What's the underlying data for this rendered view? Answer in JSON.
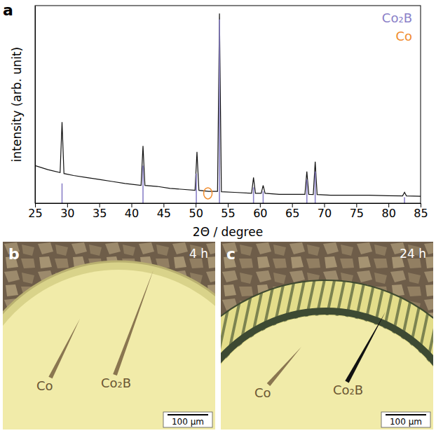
{
  "chart_data": {
    "type": "line",
    "panel": "a",
    "x_label": "2Θ / degree",
    "y_label": "intensity (arb. unit)",
    "xlim": [
      25,
      85
    ],
    "xticks": [
      25,
      30,
      35,
      40,
      45,
      50,
      55,
      60,
      65,
      70,
      75,
      80,
      85
    ],
    "ylim": [
      0,
      100
    ],
    "tick_labels": "x",
    "legend": "top-right",
    "series": [
      {
        "type": "line",
        "color": "#111111",
        "x": [
          25,
          27,
          28.9,
          29.2,
          29.5,
          31,
          33,
          35,
          37,
          39,
          41.5,
          41.8,
          42.1,
          44,
          46,
          48,
          49.9,
          50.2,
          50.5,
          52,
          53.4,
          53.7,
          54.0,
          56,
          58.7,
          59.0,
          59.3,
          60.2,
          60.5,
          60.8,
          63,
          65,
          67.0,
          67.3,
          67.6,
          68.3,
          68.6,
          68.9,
          71,
          74,
          77,
          80,
          82.2,
          82.5,
          82.8,
          85
        ],
        "values": [
          19,
          17,
          15.5,
          41,
          15,
          14,
          13,
          12,
          11,
          10,
          9,
          29,
          9,
          8.5,
          7.5,
          7,
          6.5,
          26,
          6.5,
          6,
          6,
          96,
          5.8,
          5.5,
          5,
          13,
          5,
          5,
          9,
          5,
          4.5,
          4.5,
          4.5,
          16,
          4.5,
          4.4,
          21,
          4.4,
          4,
          4,
          4,
          3.8,
          3.7,
          5.5,
          3.7,
          3.5
        ]
      },
      {
        "name": "Co₂B",
        "type": "bar",
        "color": "#8a80c8",
        "x": [
          29.2,
          41.8,
          50.1,
          53.7,
          59.0,
          60.5,
          67.3,
          68.6,
          82.5
        ],
        "values": [
          10,
          19,
          15,
          93,
          8,
          6,
          12,
          16,
          3
        ]
      },
      {
        "name": "Co",
        "type": "scatter",
        "marker": "circle",
        "color": "#f08c2e",
        "x": [
          51.9
        ],
        "values": [
          5
        ]
      }
    ]
  },
  "micrographs": [
    {
      "panel": "b",
      "time": "4 h",
      "labels": [
        "Co",
        "Co₂B"
      ],
      "scale_bar": "100 µm"
    },
    {
      "panel": "c",
      "time": "24 h",
      "labels": [
        "Co",
        "Co₂B"
      ],
      "scale_bar": "100 µm"
    }
  ]
}
